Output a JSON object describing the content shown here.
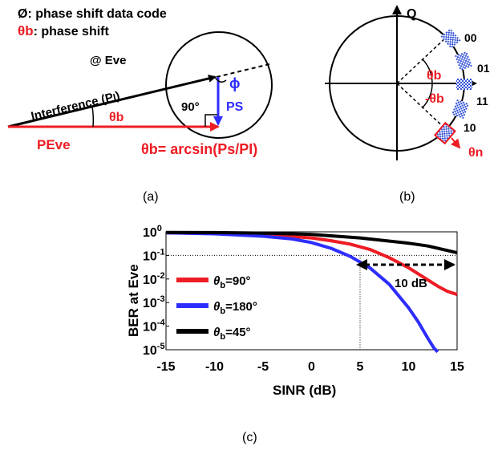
{
  "panel_a": {
    "legend_line1": "Ø: phase shift data code",
    "legend_line2_symbol": "θb",
    "legend_line2_text": ": phase shift",
    "eve_label": "@ Eve",
    "interference_label": "Interference (P",
    "interference_sub": "I",
    "interference_close": ")",
    "theta_b": "θb",
    "right_angle": "90°",
    "phi": "ϕ",
    "ps": "PS",
    "p_eve": "PEve",
    "formula": "θb= arcsin(Ps/PI)",
    "caption": "(a)"
  },
  "panel_b": {
    "axis_q": "Q",
    "theta_pos": "θb",
    "theta_neg": "-θb",
    "theta_n": "θn",
    "symbols": [
      "00",
      "01",
      "11",
      "10"
    ],
    "caption": "(b)"
  },
  "panel_c": {
    "caption": "(c)",
    "annotation": "10 dB",
    "colors": {
      "theta90": "#ee1c24",
      "theta180": "#2d2dff",
      "theta45": "#000000"
    }
  },
  "chart_data": {
    "type": "line",
    "xlabel": "SINR (dB)",
    "ylabel": "BER at Eve",
    "xlim": [
      -15,
      15
    ],
    "ylim": [
      1e-05,
      1
    ],
    "yscale": "log",
    "x_ticks": [
      "-15",
      "-10",
      "-5",
      "0",
      "5",
      "10",
      "15"
    ],
    "y_ticks": [
      "10^0",
      "10^-1",
      "10^-2",
      "10^-3",
      "10^-4",
      "10^-5"
    ],
    "reference_line_y": 0.1,
    "legend_position": "center-left",
    "series": [
      {
        "name": "θb=90°",
        "color": "#ee1c24",
        "x": [
          -15,
          -10,
          -5,
          0,
          2,
          4,
          6,
          8,
          10,
          12,
          13,
          14,
          15
        ],
        "y": [
          0.9,
          0.85,
          0.75,
          0.55,
          0.42,
          0.3,
          0.18,
          0.08,
          0.03,
          0.009,
          0.005,
          0.003,
          0.0022
        ]
      },
      {
        "name": "θb=180°",
        "color": "#2d2dff",
        "x": [
          -15,
          -10,
          -5,
          -2,
          0,
          2,
          4,
          6,
          8,
          10,
          11,
          12,
          12.6,
          13
        ],
        "y": [
          0.9,
          0.82,
          0.65,
          0.5,
          0.35,
          0.2,
          0.09,
          0.03,
          0.006,
          0.0006,
          0.00015,
          3e-05,
          1.2e-05,
          8e-06
        ]
      },
      {
        "name": "θb=45°",
        "color": "#000000",
        "x": [
          -15,
          -10,
          -5,
          0,
          5,
          10,
          12,
          15
        ],
        "y": [
          0.95,
          0.93,
          0.88,
          0.78,
          0.55,
          0.33,
          0.25,
          0.13
        ]
      }
    ]
  }
}
